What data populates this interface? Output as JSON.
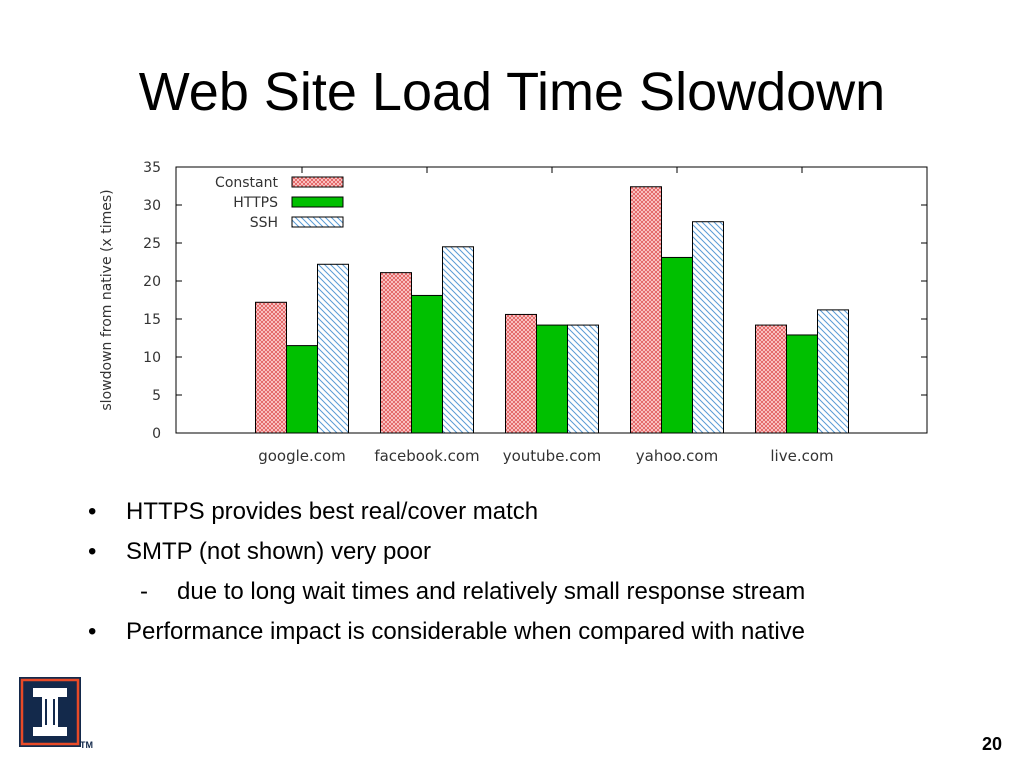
{
  "slide": {
    "title": "Web Site Load Time Slowdown",
    "page_number": "20",
    "logo": {
      "icon": "university-of-illinois-block-i-logo",
      "text": "TM"
    }
  },
  "bullets": [
    {
      "marker": "•",
      "level": 1,
      "text": "HTTPS provides best real/cover match"
    },
    {
      "marker": "•",
      "level": 1,
      "text": "SMTP (not shown) very poor"
    },
    {
      "marker": "-",
      "level": 2,
      "text": "due to long wait times and relatively small response stream"
    },
    {
      "marker": "•",
      "level": 1,
      "text": "Performance impact is considerable when compared with native"
    }
  ],
  "chart_data": {
    "type": "bar",
    "title": "",
    "xlabel": "",
    "ylabel": "slowdown from native (x times)",
    "categories": [
      "google.com",
      "facebook.com",
      "youtube.com",
      "yahoo.com",
      "live.com"
    ],
    "series": [
      {
        "name": "Constant",
        "values": [
          17.2,
          21.1,
          15.6,
          32.4,
          14.2
        ],
        "color": "#f4a0a0",
        "pattern": "crosshatch"
      },
      {
        "name": "HTTPS",
        "values": [
          11.5,
          18.1,
          14.2,
          23.1,
          12.9
        ],
        "color": "#00c000",
        "pattern": "solid"
      },
      {
        "name": "SSH",
        "values": [
          22.2,
          24.5,
          14.2,
          27.8,
          16.2
        ],
        "color": "#5a9bd5",
        "pattern": "diagonal"
      }
    ],
    "ylim": [
      0,
      35
    ],
    "yticks": [
      0,
      5,
      10,
      15,
      20,
      25,
      30,
      35
    ],
    "grid": false,
    "legend_position": "top-left"
  }
}
